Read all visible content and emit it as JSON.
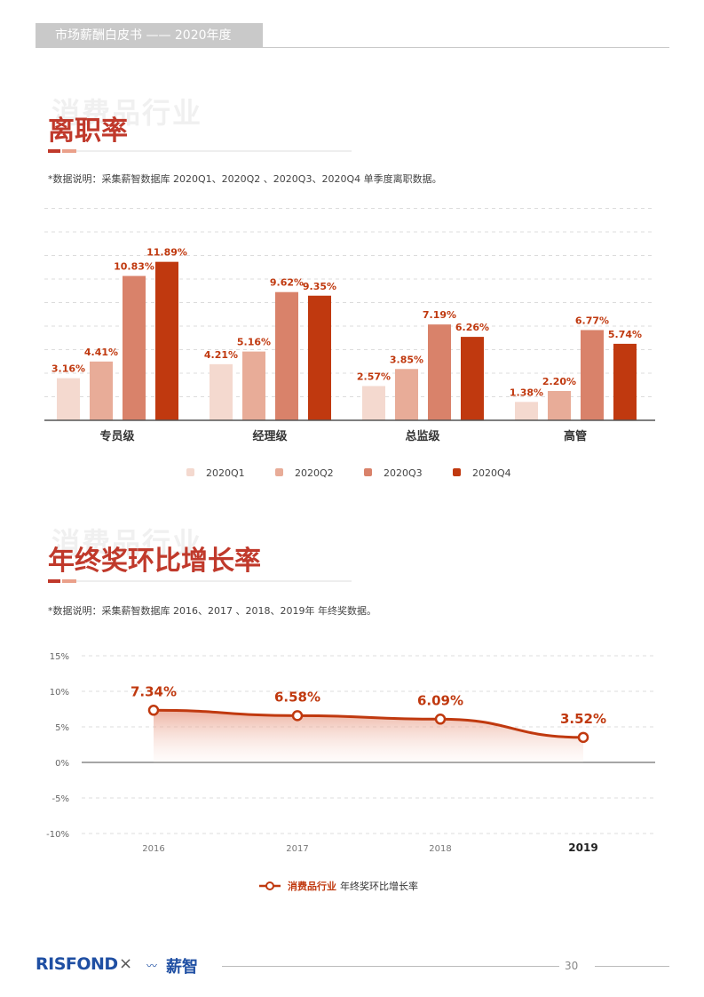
{
  "header": {
    "title": "市场薪酬白皮书 —— 2020年度"
  },
  "section1": {
    "ghost": "消费品行业",
    "title": "离职率",
    "note": "*数据说明：采集薪智数据库 2020Q1、2020Q2 、2020Q3、2020Q4 单季度离职数据。"
  },
  "section2": {
    "ghost": "消费品行业",
    "title": "年终奖环比增长率",
    "note": "*数据说明：采集薪智数据库 2016、2017 、2018、2019年 年终奖数据。"
  },
  "chart_data": [
    {
      "type": "bar",
      "categories": [
        "专员级",
        "经理级",
        "总监级",
        "高管"
      ],
      "series": [
        {
          "name": "2020Q1",
          "values": [
            3.16,
            4.21,
            2.57,
            1.38
          ],
          "color": "#f4d9cf"
        },
        {
          "name": "2020Q2",
          "values": [
            4.41,
            5.16,
            3.85,
            2.2
          ],
          "color": "#e8ac98"
        },
        {
          "name": "2020Q3",
          "values": [
            10.83,
            9.62,
            7.19,
            6.77
          ],
          "color": "#d9826a"
        },
        {
          "name": "2020Q4",
          "values": [
            11.89,
            9.35,
            6.26,
            5.74
          ],
          "color": "#c0390f"
        }
      ],
      "value_labels": [
        [
          "3.16%",
          "4.21%",
          "2.57%",
          "1.38%"
        ],
        [
          "4.41%",
          "5.16%",
          "3.85%",
          "2.20%"
        ],
        [
          "10.83%",
          "9.62%",
          "7.19%",
          "6.77%"
        ],
        [
          "11.89%",
          "9.35%",
          "6.26%",
          "5.74%"
        ]
      ],
      "ylim": [
        0,
        16
      ],
      "grid": true,
      "legend": "bottom"
    },
    {
      "type": "line",
      "x": [
        "2016",
        "2017",
        "2018",
        "2019"
      ],
      "series": [
        {
          "values": [
            7.34,
            6.58,
            6.09,
            3.52
          ],
          "color": "#c0390f"
        }
      ],
      "value_labels": [
        "7.34%",
        "6.58%",
        "6.09%",
        "3.52%"
      ],
      "yticks": [
        "15%",
        "10%",
        "5%",
        "0%",
        "-5%",
        "-10%"
      ],
      "ylim": [
        -10,
        15
      ],
      "grid": true,
      "legend": "bottom",
      "legend_label": {
        "bold": "消费品行业",
        "rest": "年终奖环比增长率"
      }
    }
  ],
  "footer": {
    "logo": "RISFOND",
    "times": "×",
    "brand_icon": "〰",
    "brand": "薪智",
    "page": "30"
  }
}
